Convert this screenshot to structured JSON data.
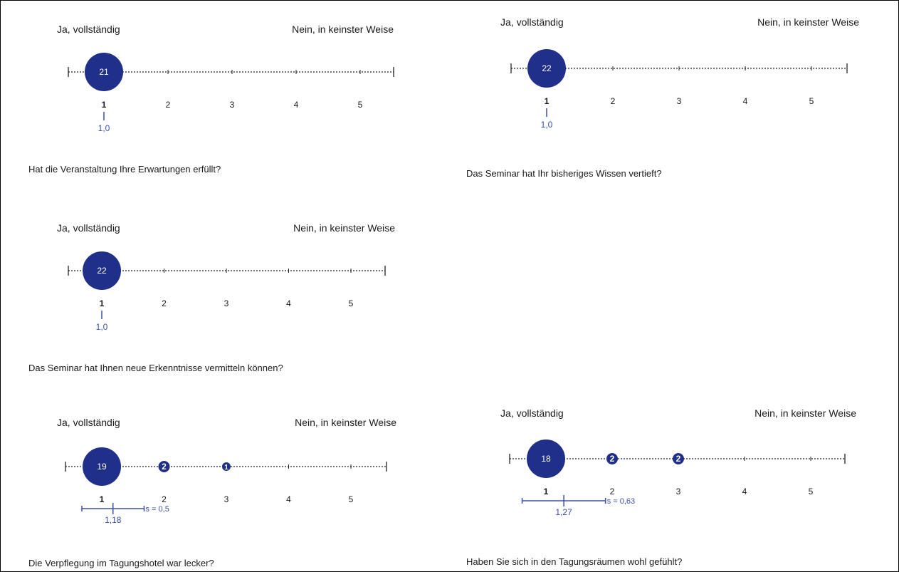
{
  "chart_data": [
    {
      "type": "scatter",
      "question": "Hat die Veranstaltung Ihre Erwartungen erfüllt?",
      "left_label": "Ja, vollständig",
      "right_label": "Nein, in keinster Weise",
      "ticks": [
        "1",
        "2",
        "3",
        "4",
        "5"
      ],
      "counts": [
        {
          "x": 1,
          "n": 21
        }
      ],
      "mean": 1.0,
      "mean_label": "1,0",
      "sd": null,
      "sd_label": ""
    },
    {
      "type": "scatter",
      "question": "Das Seminar hat Ihr bisheriges Wissen vertieft?",
      "left_label": "Ja, vollständig",
      "right_label": "Nein, in keinster Weise",
      "ticks": [
        "1",
        "2",
        "3",
        "4",
        "5"
      ],
      "counts": [
        {
          "x": 1,
          "n": 22
        }
      ],
      "mean": 1.0,
      "mean_label": "1,0",
      "sd": null,
      "sd_label": ""
    },
    {
      "type": "scatter",
      "question": "Das Seminar hat Ihnen neue Erkenntnisse vermitteln können?",
      "left_label": "Ja, vollständig",
      "right_label": "Nein, in keinster Weise",
      "ticks": [
        "1",
        "2",
        "3",
        "4",
        "5"
      ],
      "counts": [
        {
          "x": 1,
          "n": 22
        }
      ],
      "mean": 1.0,
      "mean_label": "1,0",
      "sd": null,
      "sd_label": ""
    },
    {
      "type": "scatter",
      "question": "Die Verpflegung im Tagungshotel war lecker?",
      "left_label": "Ja, vollständig",
      "right_label": "Nein, in keinster Weise",
      "ticks": [
        "1",
        "2",
        "3",
        "4",
        "5"
      ],
      "counts": [
        {
          "x": 1,
          "n": 19
        },
        {
          "x": 2,
          "n": 2
        },
        {
          "x": 3,
          "n": 1
        }
      ],
      "mean": 1.18,
      "mean_label": "1,18",
      "sd": 0.5,
      "sd_label": "s = 0,5"
    },
    {
      "type": "scatter",
      "question": "Haben Sie sich in den Tagungsräumen wohl gefühlt?",
      "left_label": "Ja, vollständig",
      "right_label": "Nein, in keinster Weise",
      "ticks": [
        "1",
        "2",
        "3",
        "4",
        "5"
      ],
      "counts": [
        {
          "x": 1,
          "n": 18
        },
        {
          "x": 2,
          "n": 2
        },
        {
          "x": 3,
          "n": 2
        }
      ],
      "mean": 1.27,
      "mean_label": "1,27",
      "sd": 0.63,
      "sd_label": "s = 0,63"
    }
  ],
  "colors": {
    "bubble": "#1f2f8a",
    "mean_marker": "#3b4ea8",
    "axis": "#222222"
  }
}
